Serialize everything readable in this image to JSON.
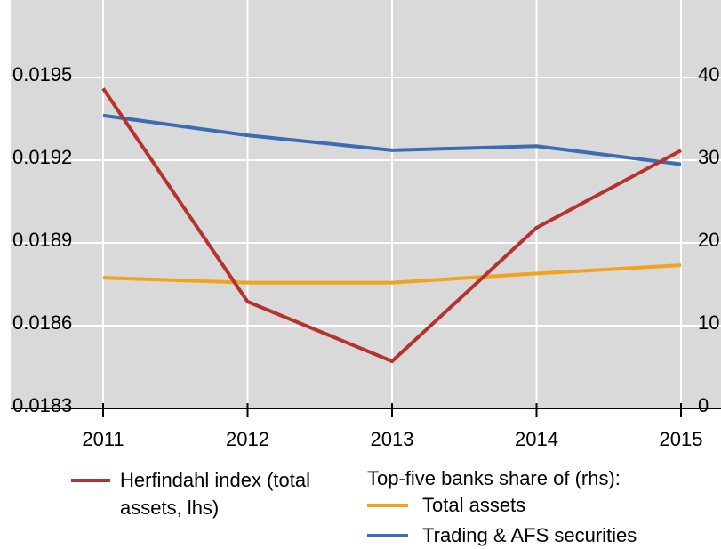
{
  "chart_data": {
    "type": "line",
    "x": [
      "2011",
      "2012",
      "2013",
      "2014",
      "2015"
    ],
    "series": [
      {
        "name": "Herfindahl index (total assets, lhs)",
        "color": "#b5322e",
        "values": [
          0.01946,
          0.018687,
          0.018471,
          0.018955,
          0.019235
        ]
      },
      {
        "name": "Total assets",
        "color": "#f0a41e",
        "axis": "y2",
        "values": [
          15.8,
          15.2,
          15.2,
          16.3,
          17.3
        ]
      },
      {
        "name": "Trading & AFS securities",
        "color": "#3b6db3",
        "axis": "y2",
        "values": [
          35.4,
          33.0,
          31.2,
          31.7,
          29.5
        ]
      }
    ],
    "legend_title": "Top-five banks share of (rhs):",
    "ylim": [
      0.0183,
      0.0197
    ],
    "yticks": [
      0.0183,
      0.0186,
      0.0189,
      0.0192,
      0.0195
    ],
    "y2lim": [
      0,
      46.67
    ],
    "y2ticks": [
      0,
      10,
      20,
      30,
      40
    ],
    "grid": true
  }
}
